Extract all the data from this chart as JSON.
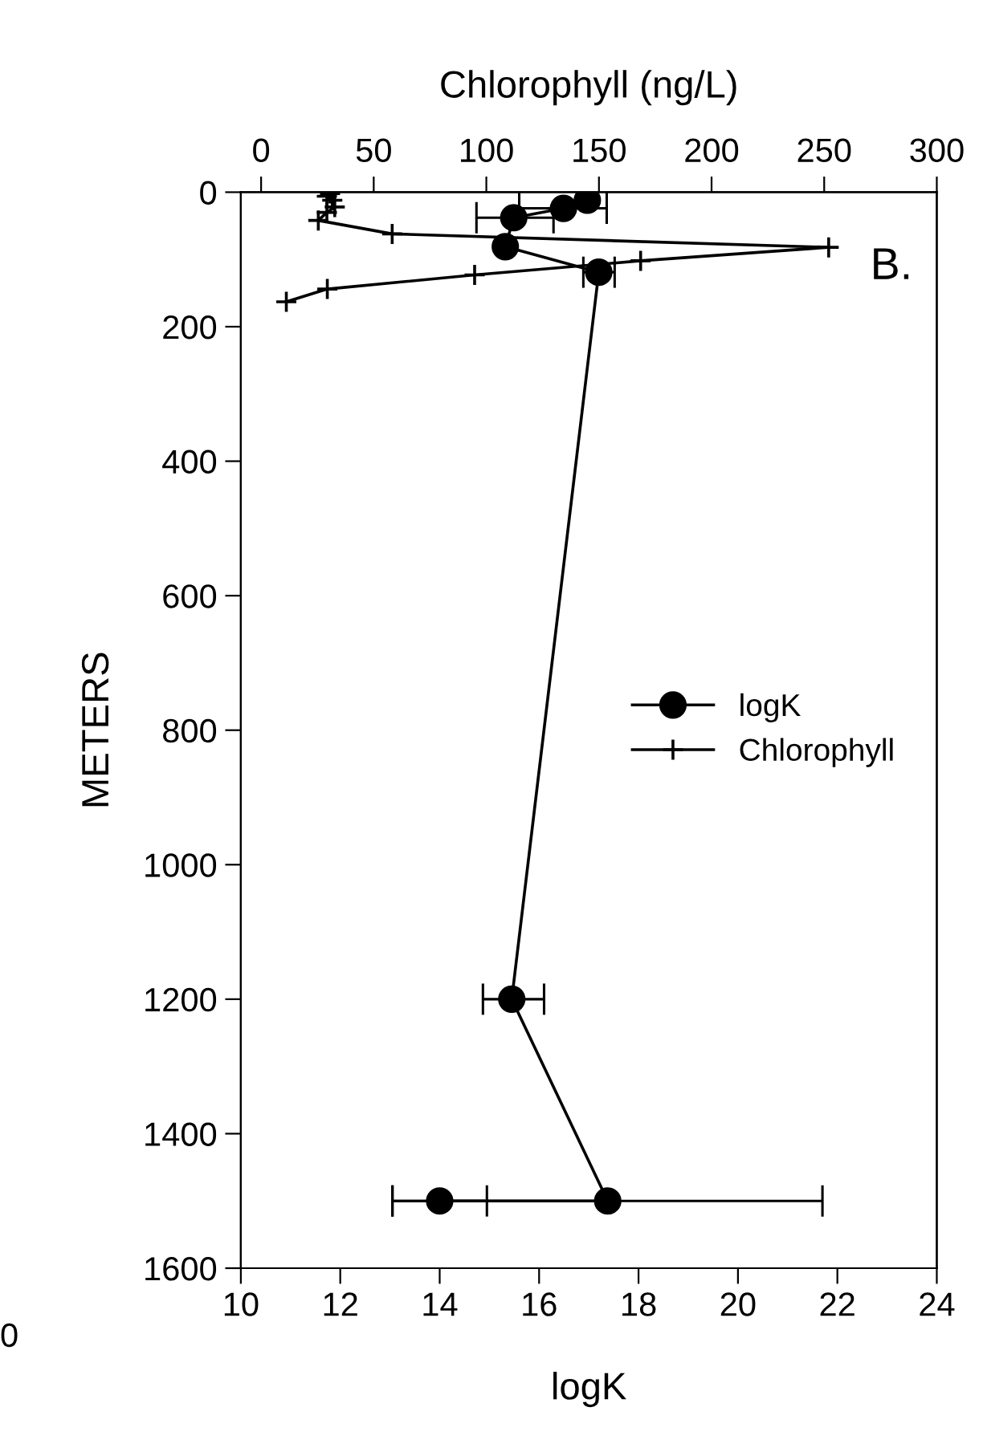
{
  "chart_data": {
    "type": "line",
    "xlabel": "logK",
    "x2label": "Chlorophyll (ng/L)",
    "ylabel": "METERS",
    "xlim": [
      10,
      24
    ],
    "xticks": [
      10,
      12,
      14,
      16,
      18,
      20,
      22,
      24
    ],
    "x2lim": [
      -9,
      300
    ],
    "x2ticks": [
      0,
      50,
      100,
      150,
      200,
      250,
      300
    ],
    "ylim": [
      1600,
      0
    ],
    "yticks": [
      0,
      200,
      400,
      600,
      800,
      1000,
      1200,
      1400,
      1600
    ],
    "grid": false,
    "legend": "right",
    "series": [
      {
        "name": "logK",
        "color": "#000000",
        "marker": "circle",
        "x": [
          16.97,
          16.49,
          15.49,
          15.32,
          17.2,
          15.45,
          17.38,
          14.0
        ],
        "values": [
          12,
          24,
          38,
          81,
          119,
          1200,
          1500,
          1500
        ],
        "xerrors": [
          null,
          [
            15.6,
            17.36
          ],
          [
            14.74,
            16.29
          ],
          null,
          [
            16.89,
            17.52
          ],
          [
            14.87,
            16.1
          ],
          [
            13.05,
            21.7
          ],
          [
            13.05,
            14.95
          ]
        ]
      },
      {
        "name": "Chlorophyll",
        "color": "#000000",
        "marker": "cross",
        "axis": "x2",
        "x": [
          30.6,
          29.2,
          31.6,
          32.7,
          29.2,
          25.4,
          58.2,
          252,
          168.5,
          94.8,
          29.4,
          11.2
        ],
        "values": [
          2,
          6,
          12,
          22,
          30,
          42,
          62,
          82,
          102,
          123,
          144,
          163
        ]
      }
    ],
    "annotations": [
      "B.",
      "0"
    ]
  }
}
